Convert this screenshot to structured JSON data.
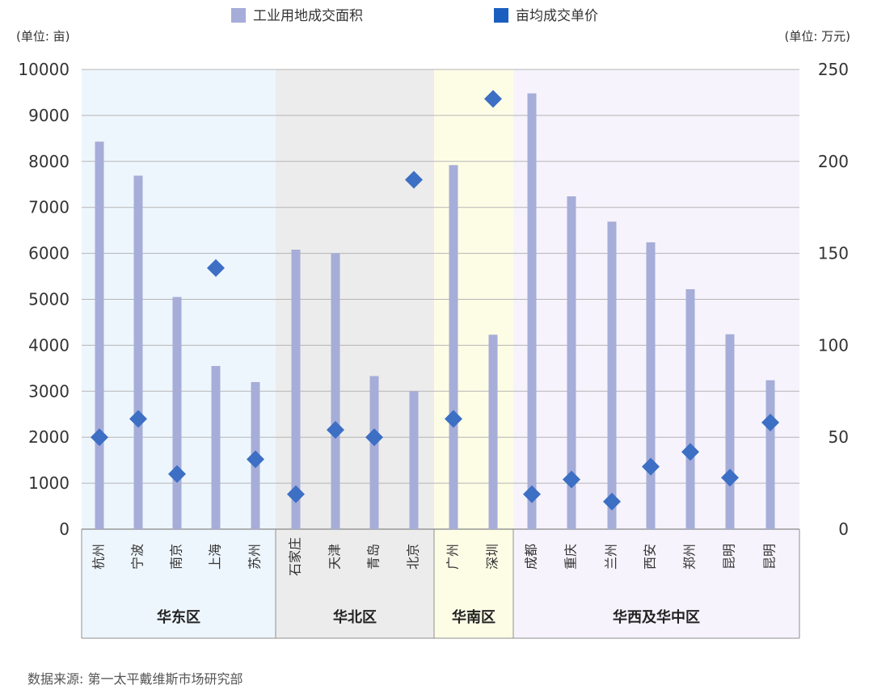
{
  "chart_data": {
    "type": "bar",
    "legend_placement": "top-center",
    "grid": true,
    "legend": [
      {
        "name": "工业用地成交面积",
        "color": "#a6add8",
        "marker": "square"
      },
      {
        "name": "亩均成交单价",
        "color": "#1a5fc0",
        "marker": "square"
      }
    ],
    "left_axis": {
      "unit": "(单位: 亩)",
      "min": 0,
      "max": 10000,
      "step": 1000,
      "ticks": [
        "0",
        "1000",
        "2000",
        "3000",
        "4000",
        "5000",
        "6000",
        "7000",
        "8000",
        "9000",
        "10000"
      ]
    },
    "right_axis": {
      "unit": "(单位: 万元)",
      "min": 0,
      "max": 250,
      "ticks": [
        {
          "value": 0,
          "label": "0"
        },
        {
          "value": 50,
          "label": "50"
        },
        {
          "value": 100,
          "label": "100"
        },
        {
          "value": 150,
          "label": "150"
        },
        {
          "value": 200,
          "label": "200"
        },
        {
          "value": 250,
          "label": "250"
        }
      ]
    },
    "categories": [
      "杭州",
      "宁波",
      "南京",
      "上海",
      "苏州",
      "石家庄",
      "天津",
      "青岛",
      "北京",
      "广州",
      "深圳",
      "成都",
      "重庆",
      "兰州",
      "西安",
      "郑州",
      "昆明",
      "昆明"
    ],
    "series": [
      {
        "name": "工业用地成交面积",
        "type": "bar",
        "axis": "left",
        "color": "#a6add8",
        "values": [
          8430,
          7690,
          5050,
          3550,
          3200,
          6080,
          6000,
          3330,
          3000,
          7920,
          4230,
          9480,
          7240,
          6690,
          6240,
          5220,
          4240,
          3240
        ]
      },
      {
        "name": "亩均成交单价",
        "type": "scatter",
        "axis": "right",
        "color": "#3d6fc4",
        "values": [
          50,
          60,
          30,
          142,
          38,
          19,
          54,
          50,
          190,
          60,
          234,
          19,
          27,
          15,
          34,
          42,
          28,
          58
        ]
      }
    ],
    "regions": [
      {
        "name": "华东区",
        "start": 0,
        "count": 5,
        "bg": "#eef6fd"
      },
      {
        "name": "华北区",
        "start": 5,
        "count": 4,
        "bg": "#ececec"
      },
      {
        "name": "华南区",
        "start": 9,
        "count": 2,
        "bg": "#fdfde6"
      },
      {
        "name": "华西及华中区",
        "start": 11,
        "count": 7,
        "bg": "#f6f3fc"
      }
    ],
    "source": "数据来源: 第一太平戴维斯市场研究部"
  }
}
